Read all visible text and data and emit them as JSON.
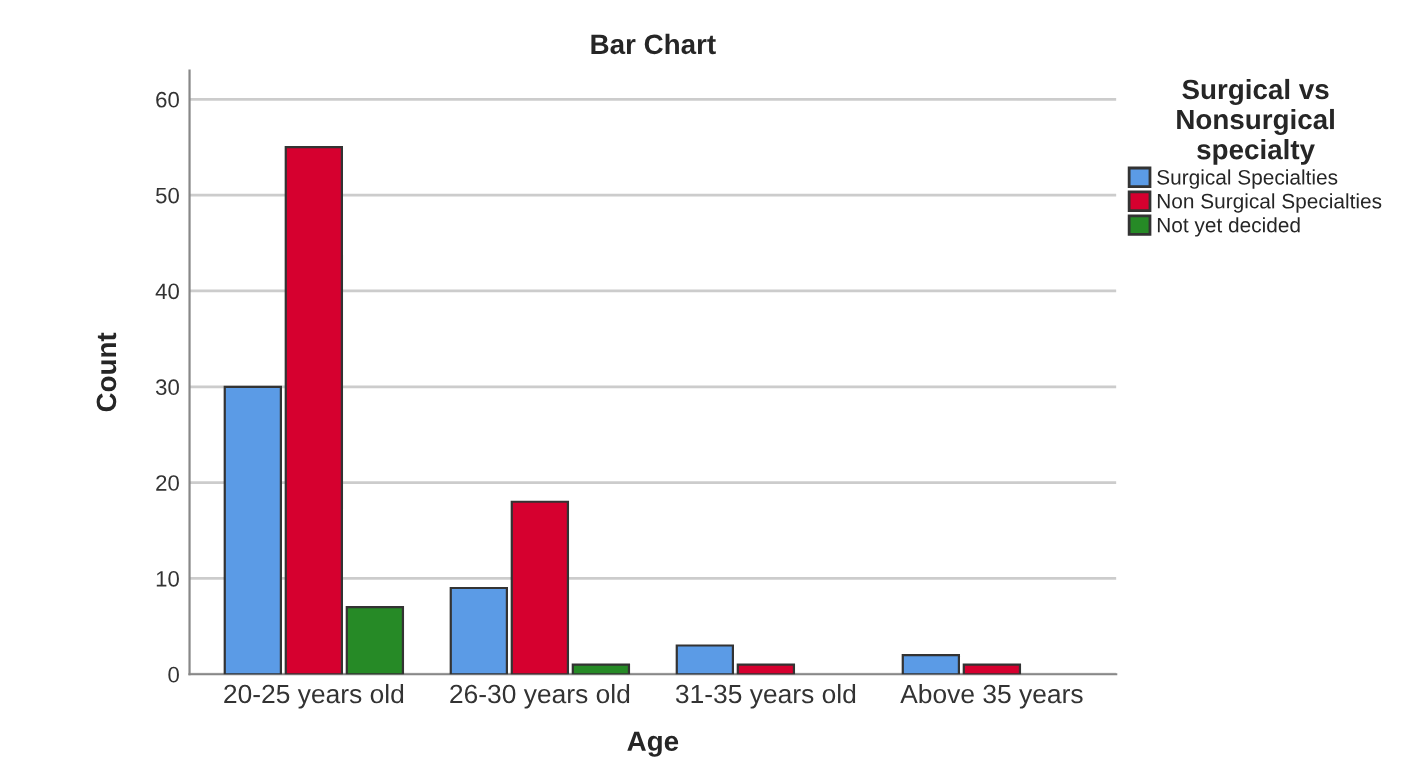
{
  "chart_data": {
    "type": "bar",
    "title": "Bar Chart",
    "xlabel": "Age",
    "ylabel": "Count",
    "legend_title": "Surgical vs\nNonsurgical\nspecialty",
    "categories": [
      "20-25 years old",
      "26-30 years old",
      "31-35 years old",
      "Above 35 years"
    ],
    "series": [
      {
        "name": "Surgical Specialties",
        "color": "#5b9be6",
        "values": [
          30,
          9,
          3,
          2
        ]
      },
      {
        "name": "Non Surgical Specialties",
        "color": "#d6002f",
        "values": [
          55,
          18,
          1,
          1
        ]
      },
      {
        "name": "Not yet decided",
        "color": "#268a26",
        "values": [
          7,
          1,
          null,
          null
        ]
      }
    ],
    "ylim": [
      0,
      63
    ],
    "yticks": [
      0,
      10,
      20,
      30,
      40,
      50,
      60
    ],
    "grid": "y",
    "legend": "top right"
  }
}
